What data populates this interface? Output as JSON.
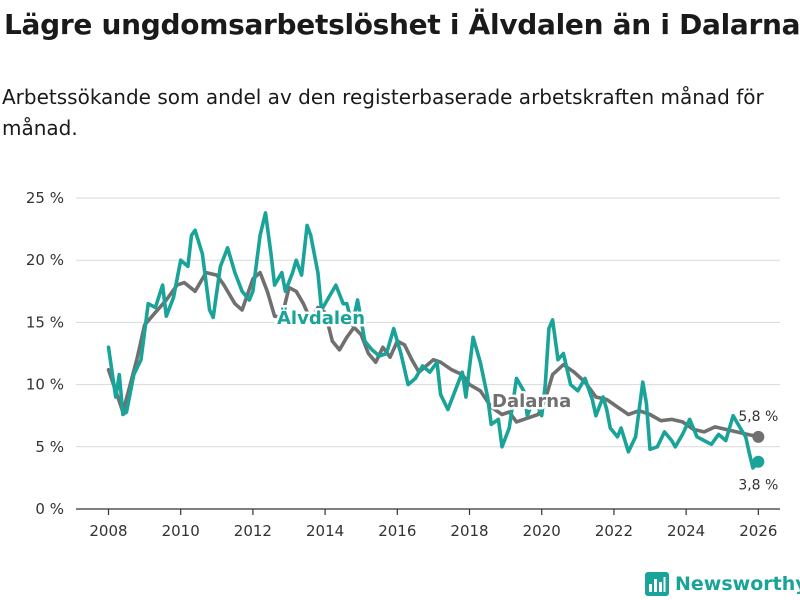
{
  "title": "Lägre ungdomsarbetslöshet i Älvdalen än i Dalarna",
  "subtitle": "Arbetssökande som andel av den registerbaserade arbetskraften månad för månad.",
  "logo": {
    "text": "Newsworthy",
    "icon": "bar-chart-icon"
  },
  "colors": {
    "alvdalen": "#1aa398",
    "dalarna": "#707070",
    "grid": "#d9d9d9",
    "axis": "#333333",
    "text": "#333333"
  },
  "chart_data": {
    "type": "line",
    "title": "Lägre ungdomsarbetslöshet i Älvdalen än i Dalarna",
    "subtitle": "Arbetssökande som andel av den registerbaserade arbetskraften månad för månad.",
    "xlabel": "",
    "ylabel": "",
    "xlim": [
      2007.1,
      2026.6
    ],
    "ylim": [
      0,
      25
    ],
    "grid": true,
    "x_ticks": [
      2008,
      2010,
      2012,
      2014,
      2016,
      2018,
      2020,
      2022,
      2024,
      2026
    ],
    "x_tick_labels": [
      "2008",
      "2010",
      "2012",
      "2014",
      "2016",
      "2018",
      "2020",
      "2022",
      "2024",
      "2026"
    ],
    "y_ticks": [
      0,
      5,
      10,
      15,
      20,
      25
    ],
    "y_tick_labels": [
      "0 %",
      "5 %",
      "10 %",
      "15 %",
      "20 %",
      "25 %"
    ],
    "series": [
      {
        "name": "Dalarna",
        "label": "Dalarna",
        "color": "#707070",
        "end_label": "5,8 %",
        "points": [
          [
            2008.0,
            11.2
          ],
          [
            2008.2,
            9.5
          ],
          [
            2008.4,
            7.8
          ],
          [
            2008.6,
            10.0
          ],
          [
            2008.8,
            12.2
          ],
          [
            2009.0,
            14.8
          ],
          [
            2009.3,
            15.8
          ],
          [
            2009.6,
            16.8
          ],
          [
            2009.9,
            18.0
          ],
          [
            2010.1,
            18.2
          ],
          [
            2010.4,
            17.5
          ],
          [
            2010.7,
            19.0
          ],
          [
            2011.0,
            18.8
          ],
          [
            2011.2,
            18.0
          ],
          [
            2011.5,
            16.5
          ],
          [
            2011.7,
            16.0
          ],
          [
            2012.0,
            18.5
          ],
          [
            2012.2,
            19.0
          ],
          [
            2012.4,
            17.5
          ],
          [
            2012.6,
            15.5
          ],
          [
            2012.8,
            15.4
          ],
          [
            2013.0,
            17.8
          ],
          [
            2013.2,
            17.5
          ],
          [
            2013.4,
            16.5
          ],
          [
            2013.6,
            15.2
          ],
          [
            2013.8,
            16.2
          ],
          [
            2014.0,
            15.8
          ],
          [
            2014.2,
            13.5
          ],
          [
            2014.4,
            12.8
          ],
          [
            2014.6,
            13.8
          ],
          [
            2014.8,
            14.6
          ],
          [
            2015.0,
            14.0
          ],
          [
            2015.2,
            12.5
          ],
          [
            2015.4,
            11.8
          ],
          [
            2015.6,
            13.0
          ],
          [
            2015.8,
            12.2
          ],
          [
            2016.0,
            13.5
          ],
          [
            2016.2,
            13.2
          ],
          [
            2016.4,
            12.0
          ],
          [
            2016.6,
            11.0
          ],
          [
            2016.8,
            11.5
          ],
          [
            2017.0,
            12.0
          ],
          [
            2017.2,
            11.8
          ],
          [
            2017.5,
            11.2
          ],
          [
            2017.8,
            10.8
          ],
          [
            2018.0,
            10.0
          ],
          [
            2018.3,
            9.5
          ],
          [
            2018.6,
            8.2
          ],
          [
            2018.9,
            7.6
          ],
          [
            2019.1,
            7.8
          ],
          [
            2019.3,
            7.0
          ],
          [
            2019.6,
            7.3
          ],
          [
            2019.9,
            7.6
          ],
          [
            2020.1,
            8.8
          ],
          [
            2020.3,
            10.8
          ],
          [
            2020.6,
            11.6
          ],
          [
            2020.9,
            11.0
          ],
          [
            2021.2,
            10.2
          ],
          [
            2021.5,
            9.0
          ],
          [
            2021.8,
            8.8
          ],
          [
            2022.1,
            8.2
          ],
          [
            2022.4,
            7.6
          ],
          [
            2022.7,
            7.9
          ],
          [
            2023.0,
            7.6
          ],
          [
            2023.3,
            7.1
          ],
          [
            2023.6,
            7.2
          ],
          [
            2023.9,
            7.0
          ],
          [
            2024.2,
            6.4
          ],
          [
            2024.5,
            6.2
          ],
          [
            2024.8,
            6.6
          ],
          [
            2025.1,
            6.4
          ],
          [
            2025.4,
            6.2
          ],
          [
            2025.7,
            6.0
          ],
          [
            2026.0,
            5.8
          ]
        ]
      },
      {
        "name": "Älvdalen",
        "label": "Älvdalen",
        "color": "#1aa398",
        "end_label": "3,8 %",
        "points": [
          [
            2008.0,
            13.0
          ],
          [
            2008.1,
            11.0
          ],
          [
            2008.2,
            9.0
          ],
          [
            2008.3,
            10.8
          ],
          [
            2008.4,
            7.6
          ],
          [
            2008.5,
            7.8
          ],
          [
            2008.7,
            10.8
          ],
          [
            2008.9,
            12.0
          ],
          [
            2009.1,
            16.5
          ],
          [
            2009.3,
            16.2
          ],
          [
            2009.5,
            18.0
          ],
          [
            2009.6,
            15.5
          ],
          [
            2009.8,
            17.0
          ],
          [
            2010.0,
            20.0
          ],
          [
            2010.2,
            19.5
          ],
          [
            2010.3,
            22.0
          ],
          [
            2010.4,
            22.4
          ],
          [
            2010.6,
            20.5
          ],
          [
            2010.8,
            16.0
          ],
          [
            2010.9,
            15.4
          ],
          [
            2011.1,
            19.5
          ],
          [
            2011.3,
            21.0
          ],
          [
            2011.5,
            19.0
          ],
          [
            2011.7,
            17.5
          ],
          [
            2011.9,
            16.8
          ],
          [
            2012.0,
            17.5
          ],
          [
            2012.2,
            22.0
          ],
          [
            2012.35,
            23.8
          ],
          [
            2012.5,
            20.5
          ],
          [
            2012.6,
            18.0
          ],
          [
            2012.8,
            19.0
          ],
          [
            2012.9,
            17.5
          ],
          [
            2013.1,
            19.0
          ],
          [
            2013.2,
            20.0
          ],
          [
            2013.35,
            18.8
          ],
          [
            2013.5,
            22.8
          ],
          [
            2013.6,
            22.0
          ],
          [
            2013.8,
            19.0
          ],
          [
            2013.9,
            16.0
          ],
          [
            2014.1,
            17.0
          ],
          [
            2014.3,
            18.0
          ],
          [
            2014.5,
            16.5
          ],
          [
            2014.6,
            16.5
          ],
          [
            2014.75,
            14.8
          ],
          [
            2014.9,
            16.8
          ],
          [
            2015.1,
            13.5
          ],
          [
            2015.3,
            12.8
          ],
          [
            2015.5,
            12.3
          ],
          [
            2015.7,
            12.5
          ],
          [
            2015.9,
            14.5
          ],
          [
            2016.1,
            12.5
          ],
          [
            2016.3,
            10.0
          ],
          [
            2016.5,
            10.5
          ],
          [
            2016.7,
            11.5
          ],
          [
            2016.9,
            11.0
          ],
          [
            2017.1,
            11.8
          ],
          [
            2017.2,
            9.2
          ],
          [
            2017.4,
            8.0
          ],
          [
            2017.6,
            9.5
          ],
          [
            2017.8,
            11.0
          ],
          [
            2017.9,
            9.0
          ],
          [
            2018.1,
            13.8
          ],
          [
            2018.3,
            11.8
          ],
          [
            2018.5,
            9.0
          ],
          [
            2018.6,
            6.8
          ],
          [
            2018.8,
            7.2
          ],
          [
            2018.9,
            5.0
          ],
          [
            2019.1,
            6.5
          ],
          [
            2019.3,
            10.5
          ],
          [
            2019.5,
            9.5
          ],
          [
            2019.6,
            7.5
          ],
          [
            2019.8,
            9.0
          ],
          [
            2020.0,
            7.5
          ],
          [
            2020.1,
            10.0
          ],
          [
            2020.2,
            14.5
          ],
          [
            2020.3,
            15.2
          ],
          [
            2020.45,
            12.0
          ],
          [
            2020.6,
            12.5
          ],
          [
            2020.8,
            10.0
          ],
          [
            2021.0,
            9.5
          ],
          [
            2021.2,
            10.5
          ],
          [
            2021.4,
            8.8
          ],
          [
            2021.5,
            7.5
          ],
          [
            2021.7,
            9.0
          ],
          [
            2021.8,
            8.0
          ],
          [
            2021.9,
            6.5
          ],
          [
            2022.1,
            5.8
          ],
          [
            2022.2,
            6.5
          ],
          [
            2022.4,
            4.6
          ],
          [
            2022.6,
            5.8
          ],
          [
            2022.8,
            10.2
          ],
          [
            2022.9,
            8.5
          ],
          [
            2023.0,
            4.8
          ],
          [
            2023.2,
            5.0
          ],
          [
            2023.4,
            6.2
          ],
          [
            2023.6,
            5.5
          ],
          [
            2023.7,
            5.0
          ],
          [
            2023.9,
            6.0
          ],
          [
            2024.1,
            7.2
          ],
          [
            2024.3,
            5.8
          ],
          [
            2024.5,
            5.5
          ],
          [
            2024.7,
            5.2
          ],
          [
            2024.9,
            6.0
          ],
          [
            2025.1,
            5.5
          ],
          [
            2025.3,
            7.5
          ],
          [
            2025.5,
            6.5
          ],
          [
            2025.65,
            5.8
          ],
          [
            2025.75,
            4.5
          ],
          [
            2025.85,
            3.3
          ],
          [
            2026.0,
            3.8
          ]
        ]
      }
    ]
  }
}
